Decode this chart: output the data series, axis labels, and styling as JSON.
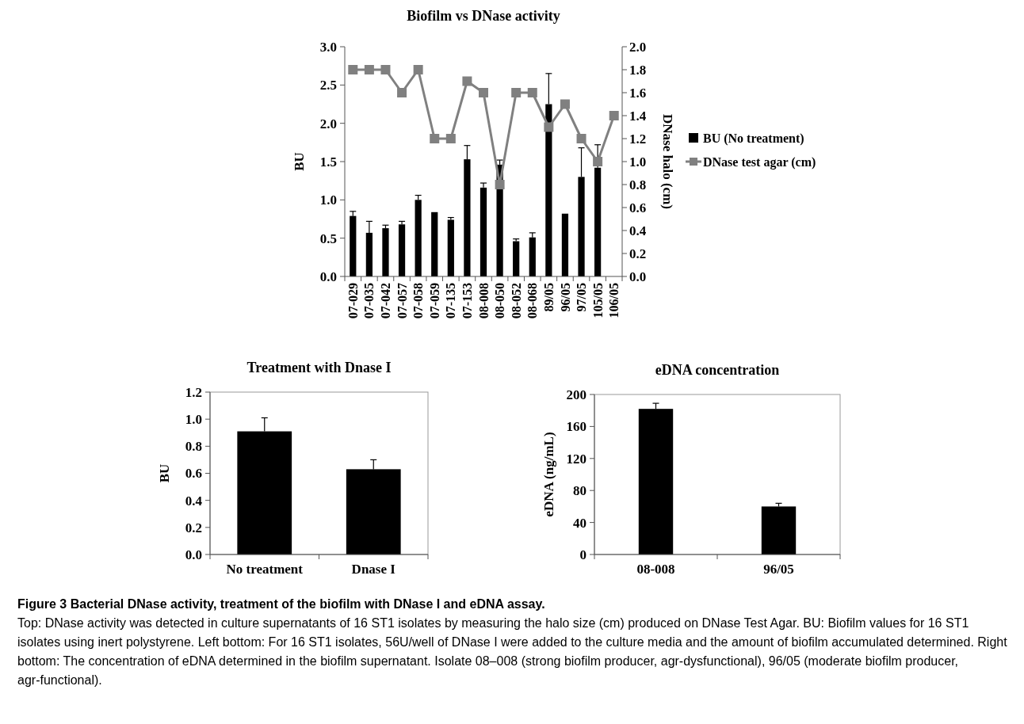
{
  "chart_data": [
    {
      "type": "bar",
      "title": "Biofilm vs DNase activity",
      "ylabel": "BU",
      "y2label": "DNase halo (cm)",
      "categories": [
        "07-029",
        "07-035",
        "07-042",
        "07-057",
        "07-058",
        "07-059",
        "07-135",
        "07-153",
        "08-008",
        "08-050",
        "08-052",
        "08-068",
        "89/05",
        "96/05",
        "97/05",
        "105/05",
        "106/05"
      ],
      "series": [
        {
          "name": "BU (No treatment)",
          "color": "#000000",
          "values": [
            0.79,
            0.57,
            0.63,
            0.68,
            1.0,
            0.84,
            0.74,
            1.53,
            1.16,
            1.46,
            0.46,
            0.51,
            2.25,
            0.82,
            1.3,
            1.42,
            null
          ],
          "errors": [
            0.06,
            0.15,
            0.04,
            0.04,
            0.06,
            null,
            0.03,
            0.18,
            0.06,
            0.06,
            0.03,
            0.06,
            0.4,
            null,
            0.38,
            0.3,
            null
          ]
        },
        {
          "name": "DNase test agar (cm)",
          "type": "line",
          "axis": "y2",
          "color": "#808080",
          "marker": "square",
          "values": [
            1.8,
            1.8,
            1.8,
            1.6,
            1.8,
            1.2,
            1.2,
            1.7,
            1.6,
            0.8,
            1.6,
            1.6,
            1.3,
            1.5,
            1.2,
            1.0,
            1.4
          ]
        }
      ],
      "ylim": [
        0,
        3
      ],
      "yticks": [
        {
          "value": 0,
          "label": "0.0"
        },
        {
          "value": 0.5,
          "label": "0.5"
        },
        {
          "value": 1,
          "label": "1.0"
        },
        {
          "value": 1.5,
          "label": "1.5"
        },
        {
          "value": 2,
          "label": "2.0"
        },
        {
          "value": 2.5,
          "label": "2.5"
        },
        {
          "value": 3,
          "label": "3.0"
        }
      ],
      "y2lim": [
        0,
        2
      ],
      "y2ticks": [
        {
          "value": 0,
          "label": "0.0"
        },
        {
          "value": 0.2,
          "label": "0.2"
        },
        {
          "value": 0.4,
          "label": "0.4"
        },
        {
          "value": 0.6,
          "label": "0.6"
        },
        {
          "value": 0.8,
          "label": "0.8"
        },
        {
          "value": 1,
          "label": "1.0"
        },
        {
          "value": 1.2,
          "label": "1.2"
        },
        {
          "value": 1.4,
          "label": "1.4"
        },
        {
          "value": 1.6,
          "label": "1.6"
        },
        {
          "value": 1.8,
          "label": "1.8"
        },
        {
          "value": 2,
          "label": "2.0"
        }
      ],
      "legend": "right",
      "grid": false,
      "annotations": [
        "Figure 3 Bacterial DNase activity, treatment of the biofilm with DNase I and eDNA assay.",
        "Top: DNase activity was detected in culture supernatants of 16 ST1 isolates by measuring the halo size (cm) produced on DNase Test Agar. BU: Biofilm values for 16 ST1 isolates using inert polystyrene. Left bottom: For 16 ST1 isolates, 56U/well of DNase I were added to the culture media and the amount of biofilm accumulated determined. Right bottom: The concentration of eDNA determined in the biofilm supernatant. Isolate 08–008 (strong biofilm producer, agr-dysfunctional), 96/05 (moderate biofilm producer, agr-functional)."
      ]
    },
    {
      "type": "bar",
      "title": "Treatment with Dnase I",
      "ylabel": "BU",
      "categories": [
        "No treatment",
        "Dnase I"
      ],
      "values": [
        0.91,
        0.63
      ],
      "errors": [
        0.1,
        0.07
      ],
      "color": "#000000",
      "ylim": [
        0,
        1.2
      ],
      "yticks": [
        {
          "value": 0,
          "label": "0.0"
        },
        {
          "value": 0.2,
          "label": "0.2"
        },
        {
          "value": 0.4,
          "label": "0.4"
        },
        {
          "value": 0.6,
          "label": "0.6"
        },
        {
          "value": 0.8,
          "label": "0.8"
        },
        {
          "value": 1,
          "label": "1.0"
        },
        {
          "value": 1.2,
          "label": "1.2"
        }
      ],
      "grid": false
    },
    {
      "type": "bar",
      "title": "eDNA concentration",
      "ylabel": "eDNA (ng/mL)",
      "categories": [
        "08-008",
        "96/05"
      ],
      "values": [
        182,
        60
      ],
      "errors": [
        7,
        4
      ],
      "color": "#000000",
      "ylim": [
        0,
        200
      ],
      "yticks": [
        0,
        40,
        80,
        120,
        160,
        200
      ],
      "grid": false
    }
  ]
}
